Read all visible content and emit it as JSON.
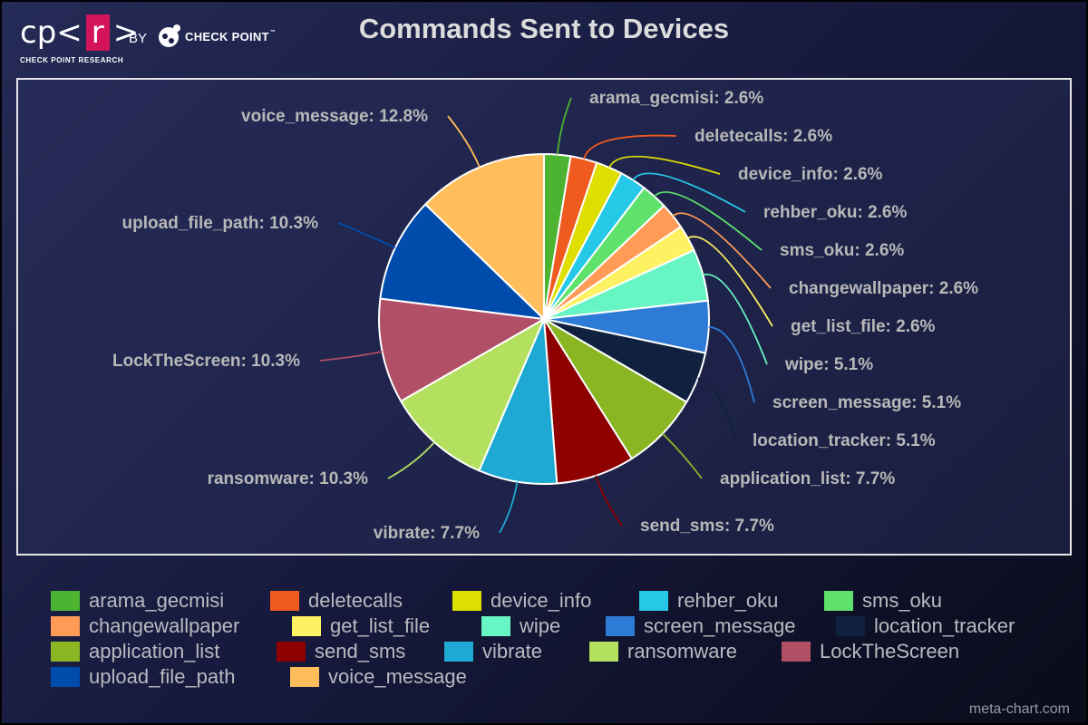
{
  "logo": {
    "left": "cp",
    "open": "<",
    "r": "r",
    "close": ">",
    "sub": "CHECK POINT RESEARCH"
  },
  "by_label": "BY",
  "brand": {
    "name": "CHECK POINT",
    "tm": "™"
  },
  "watermark": "meta-chart.com",
  "colors": {
    "background": "#1b1f45",
    "slice_border": "#ffffff",
    "label_text": "#b8b8b8"
  },
  "chart_data": {
    "type": "pie",
    "title": "Commands Sent to Devices",
    "legend_position": "bottom",
    "slices": [
      {
        "label": "arama_gecmisi",
        "value": 2.6,
        "display": "arama_gecmisi: 2.6%",
        "color": "#4db432"
      },
      {
        "label": "deletecalls",
        "value": 2.6,
        "display": "deletecalls: 2.6%",
        "color": "#ef5a1f"
      },
      {
        "label": "device_info",
        "value": 2.6,
        "display": "device_info: 2.6%",
        "color": "#dede00"
      },
      {
        "label": "rehber_oku",
        "value": 2.6,
        "display": "rehber_oku: 2.6%",
        "color": "#25c8e6"
      },
      {
        "label": "sms_oku",
        "value": 2.6,
        "display": "sms_oku: 2.6%",
        "color": "#5fe26b"
      },
      {
        "label": "changewallpaper",
        "value": 2.6,
        "display": "changewallpaper: 2.6%",
        "color": "#ff9b57"
      },
      {
        "label": "get_list_file",
        "value": 2.6,
        "display": "get_list_file: 2.6%",
        "color": "#fff262"
      },
      {
        "label": "wipe",
        "value": 5.1,
        "display": "wipe: 5.1%",
        "color": "#68f5c4"
      },
      {
        "label": "screen_message",
        "value": 5.1,
        "display": "screen_message: 5.1%",
        "color": "#2d7bd6"
      },
      {
        "label": "location_tracker",
        "value": 5.1,
        "display": "location_tracker: 5.1%",
        "color": "#0f213e"
      },
      {
        "label": "application_list",
        "value": 7.7,
        "display": "application_list: 7.7%",
        "color": "#8ab624"
      },
      {
        "label": "send_sms",
        "value": 7.7,
        "display": "send_sms: 7.7%",
        "color": "#8f0000"
      },
      {
        "label": "vibrate",
        "value": 7.7,
        "display": "vibrate: 7.7%",
        "color": "#1da9d1"
      },
      {
        "label": "ransomware",
        "value": 10.3,
        "display": "ransomware: 10.3%",
        "color": "#b3e05e"
      },
      {
        "label": "LockTheScreen",
        "value": 10.3,
        "display": "LockTheScreen: 10.3%",
        "color": "#b04f66"
      },
      {
        "label": "upload_file_path",
        "value": 10.3,
        "display": "upload_file_path: 10.3%",
        "color": "#004cad"
      },
      {
        "label": "voice_message",
        "value": 12.8,
        "display": "voice_message: 12.8%",
        "color": "#ffbe5b"
      }
    ]
  }
}
